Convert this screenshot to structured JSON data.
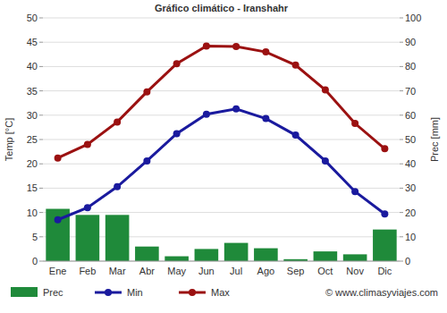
{
  "chart_data": {
    "type": "bar",
    "title": "Gráfico climático - Iranshahr",
    "ylabel": "Temp [°C]",
    "y2label": "Prec [mm]",
    "annotations": [
      "© www.climasyviajes.com"
    ],
    "categories": [
      "Ene",
      "Feb",
      "Mar",
      "Abr",
      "May",
      "Jun",
      "Jul",
      "Ago",
      "Sep",
      "Oct",
      "Nov",
      "Dic"
    ],
    "series": [
      {
        "name": "Prec",
        "type": "bar",
        "axis": "y2",
        "color": "#1f8a3a",
        "values": [
          21.5,
          19,
          19,
          6,
          2,
          5,
          7.5,
          5.3,
          0.8,
          4,
          2.8,
          13
        ]
      },
      {
        "name": "Min",
        "type": "line",
        "color": "#1a1a9e",
        "marker": "circle",
        "values": [
          8.5,
          11,
          15.3,
          20.6,
          26.2,
          30.2,
          31.3,
          29.3,
          25.9,
          20.6,
          14.3,
          9.7
        ]
      },
      {
        "name": "Max",
        "type": "line",
        "color": "#9b1111",
        "marker": "circle",
        "values": [
          21.2,
          24,
          28.6,
          34.8,
          40.6,
          44.2,
          44.1,
          43,
          40.3,
          35.2,
          28.3,
          23.1
        ]
      }
    ],
    "ylim": [
      0,
      50
    ],
    "yticks": [
      0,
      5,
      10,
      15,
      20,
      25,
      30,
      35,
      40,
      45,
      50
    ],
    "y2lim": [
      0,
      100
    ],
    "y2ticks": [
      0,
      10,
      20,
      30,
      40,
      50,
      60,
      70,
      80,
      90,
      100
    ],
    "grid": true,
    "legend": "bottom"
  }
}
